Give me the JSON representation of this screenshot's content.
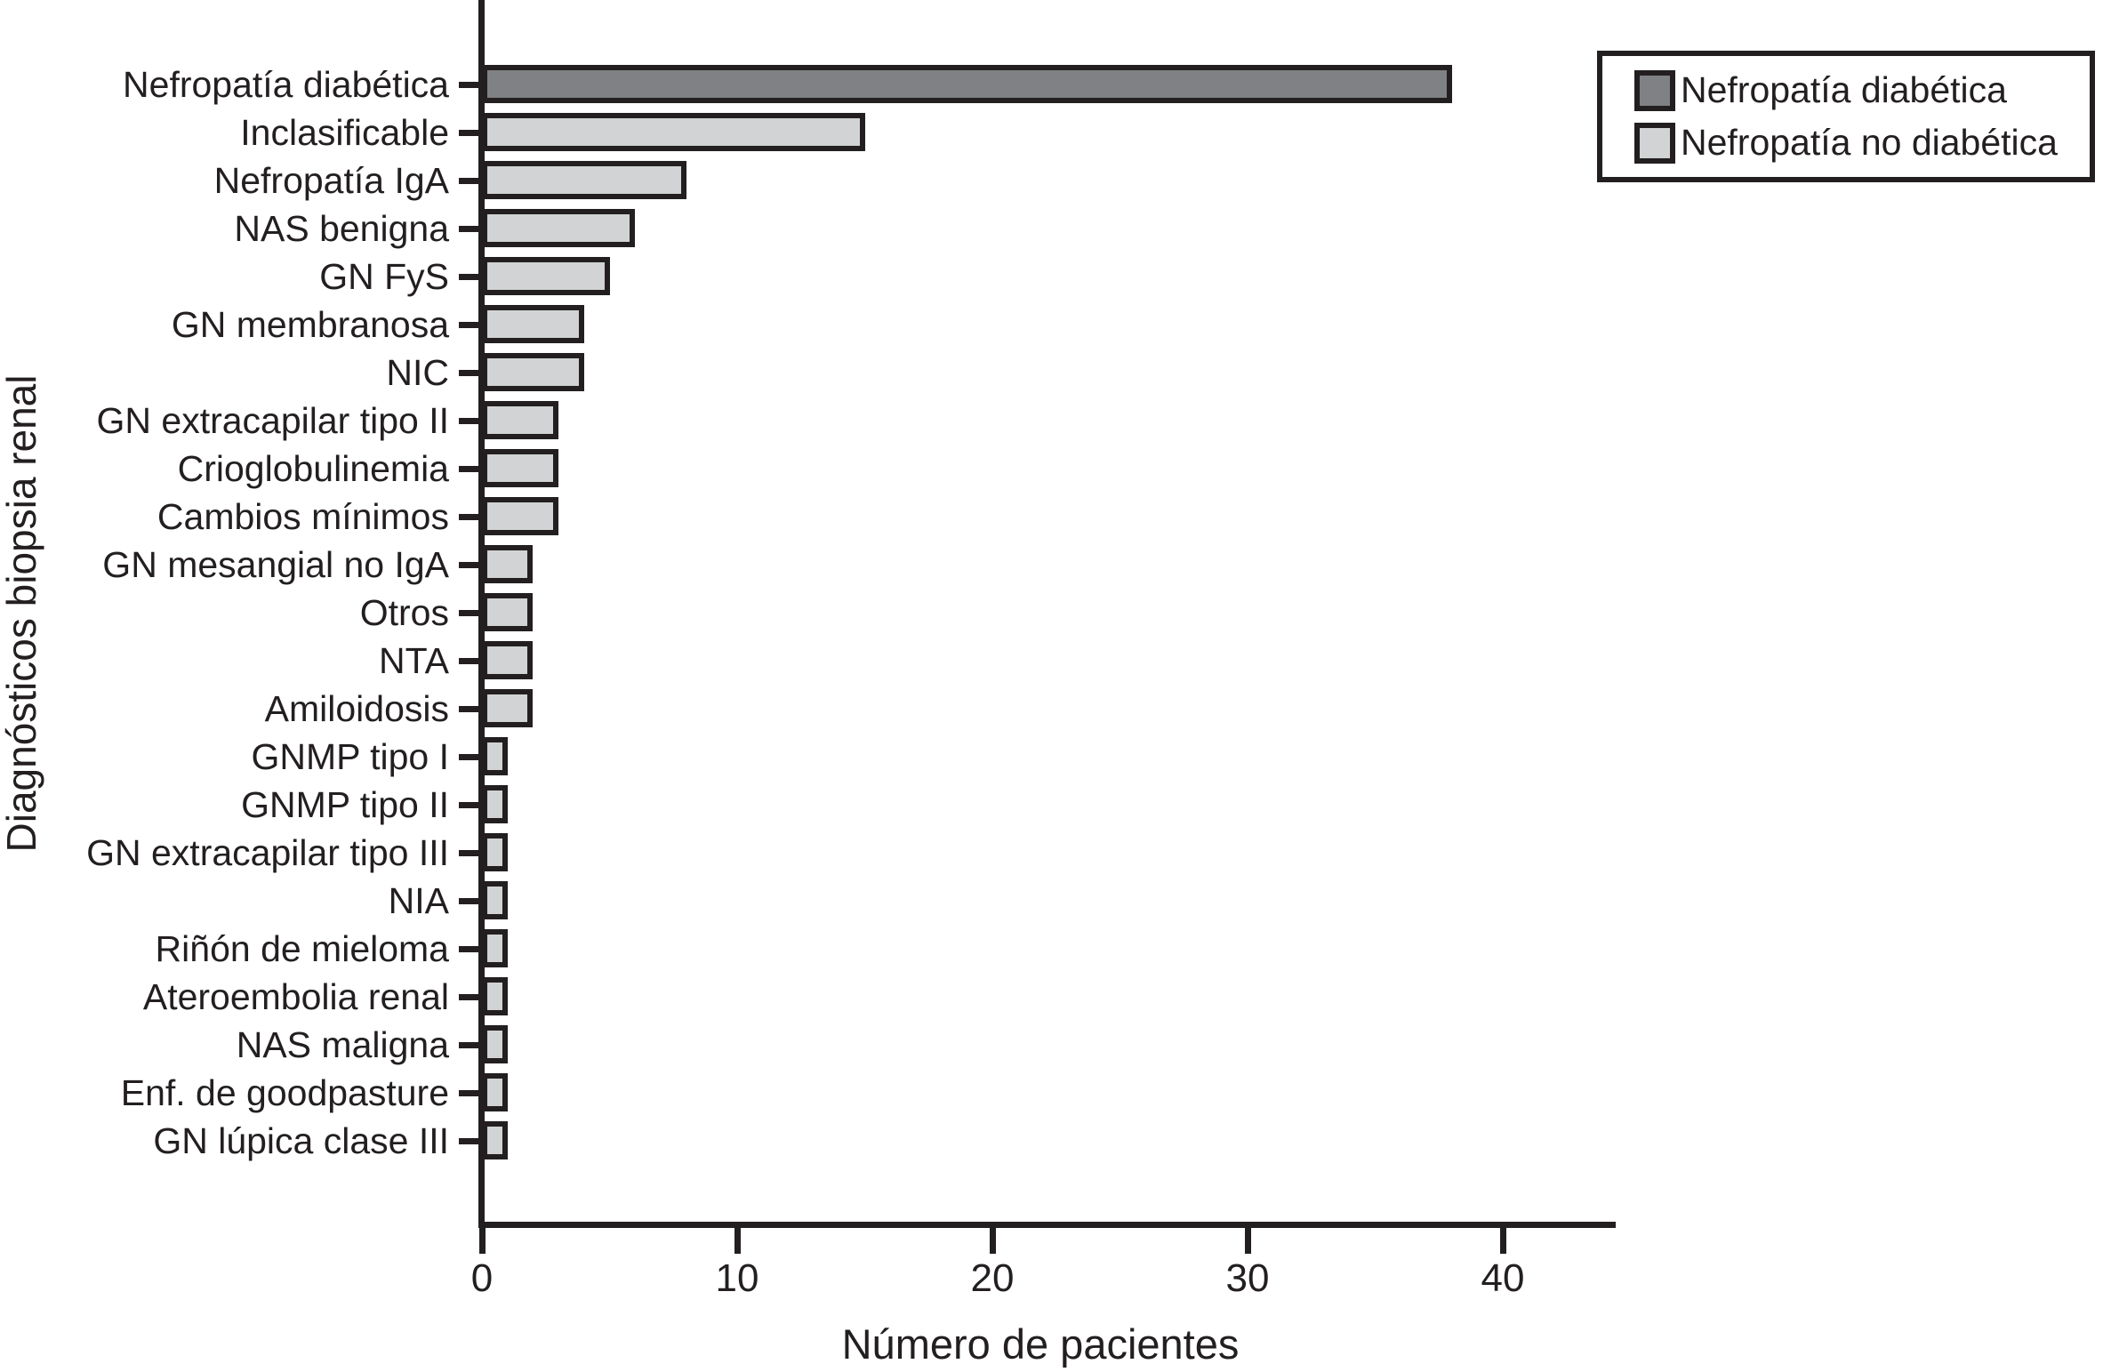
{
  "figure": {
    "background": "#ffffff",
    "ink_color": "#231f20"
  },
  "chart_data": {
    "type": "bar",
    "orientation": "horizontal",
    "title": "",
    "xlabel": "Número de pacientes",
    "ylabel": "Diagnósticos biopsia renal",
    "xlim": [
      0,
      44.4
    ],
    "xticks": [
      0,
      10,
      20,
      30,
      40
    ],
    "xtick_labels": [
      "0",
      "10",
      "20",
      "30",
      "40"
    ],
    "grid": false,
    "legend_position": "top-right",
    "categories": [
      "Nefropatía diabética",
      "Inclasificable",
      "Nefropatía IgA",
      "NAS benigna",
      "GN FyS",
      "GN membranosa",
      "NIC",
      "GN extracapilar tipo II",
      "Crioglobulinemia",
      "Cambios mínimos",
      "GN mesangial no IgA",
      "Otros",
      "NTA",
      "Amiloidosis",
      "GNMP tipo I",
      "GNMP tipo II",
      "GN extracapilar tipo III",
      "NIA",
      "Riñón de mieloma",
      "Ateroembolia renal",
      "NAS maligna",
      "Enf. de goodpasture",
      "GN lúpica clase III"
    ],
    "values": [
      38,
      15,
      8,
      6,
      5,
      4,
      4,
      3,
      3,
      3,
      2,
      2,
      2,
      2,
      1,
      1,
      1,
      1,
      1,
      1,
      1,
      1,
      1
    ],
    "bar_legend_index": [
      0,
      1,
      1,
      1,
      1,
      1,
      1,
      1,
      1,
      1,
      1,
      1,
      1,
      1,
      1,
      1,
      1,
      1,
      1,
      1,
      1,
      1,
      1
    ]
  },
  "legend": {
    "items": [
      {
        "label": "Nefropatía diabética",
        "color": "#808184"
      },
      {
        "label": "Nefropatía no diabética",
        "color": "#d1d3d4"
      }
    ]
  }
}
